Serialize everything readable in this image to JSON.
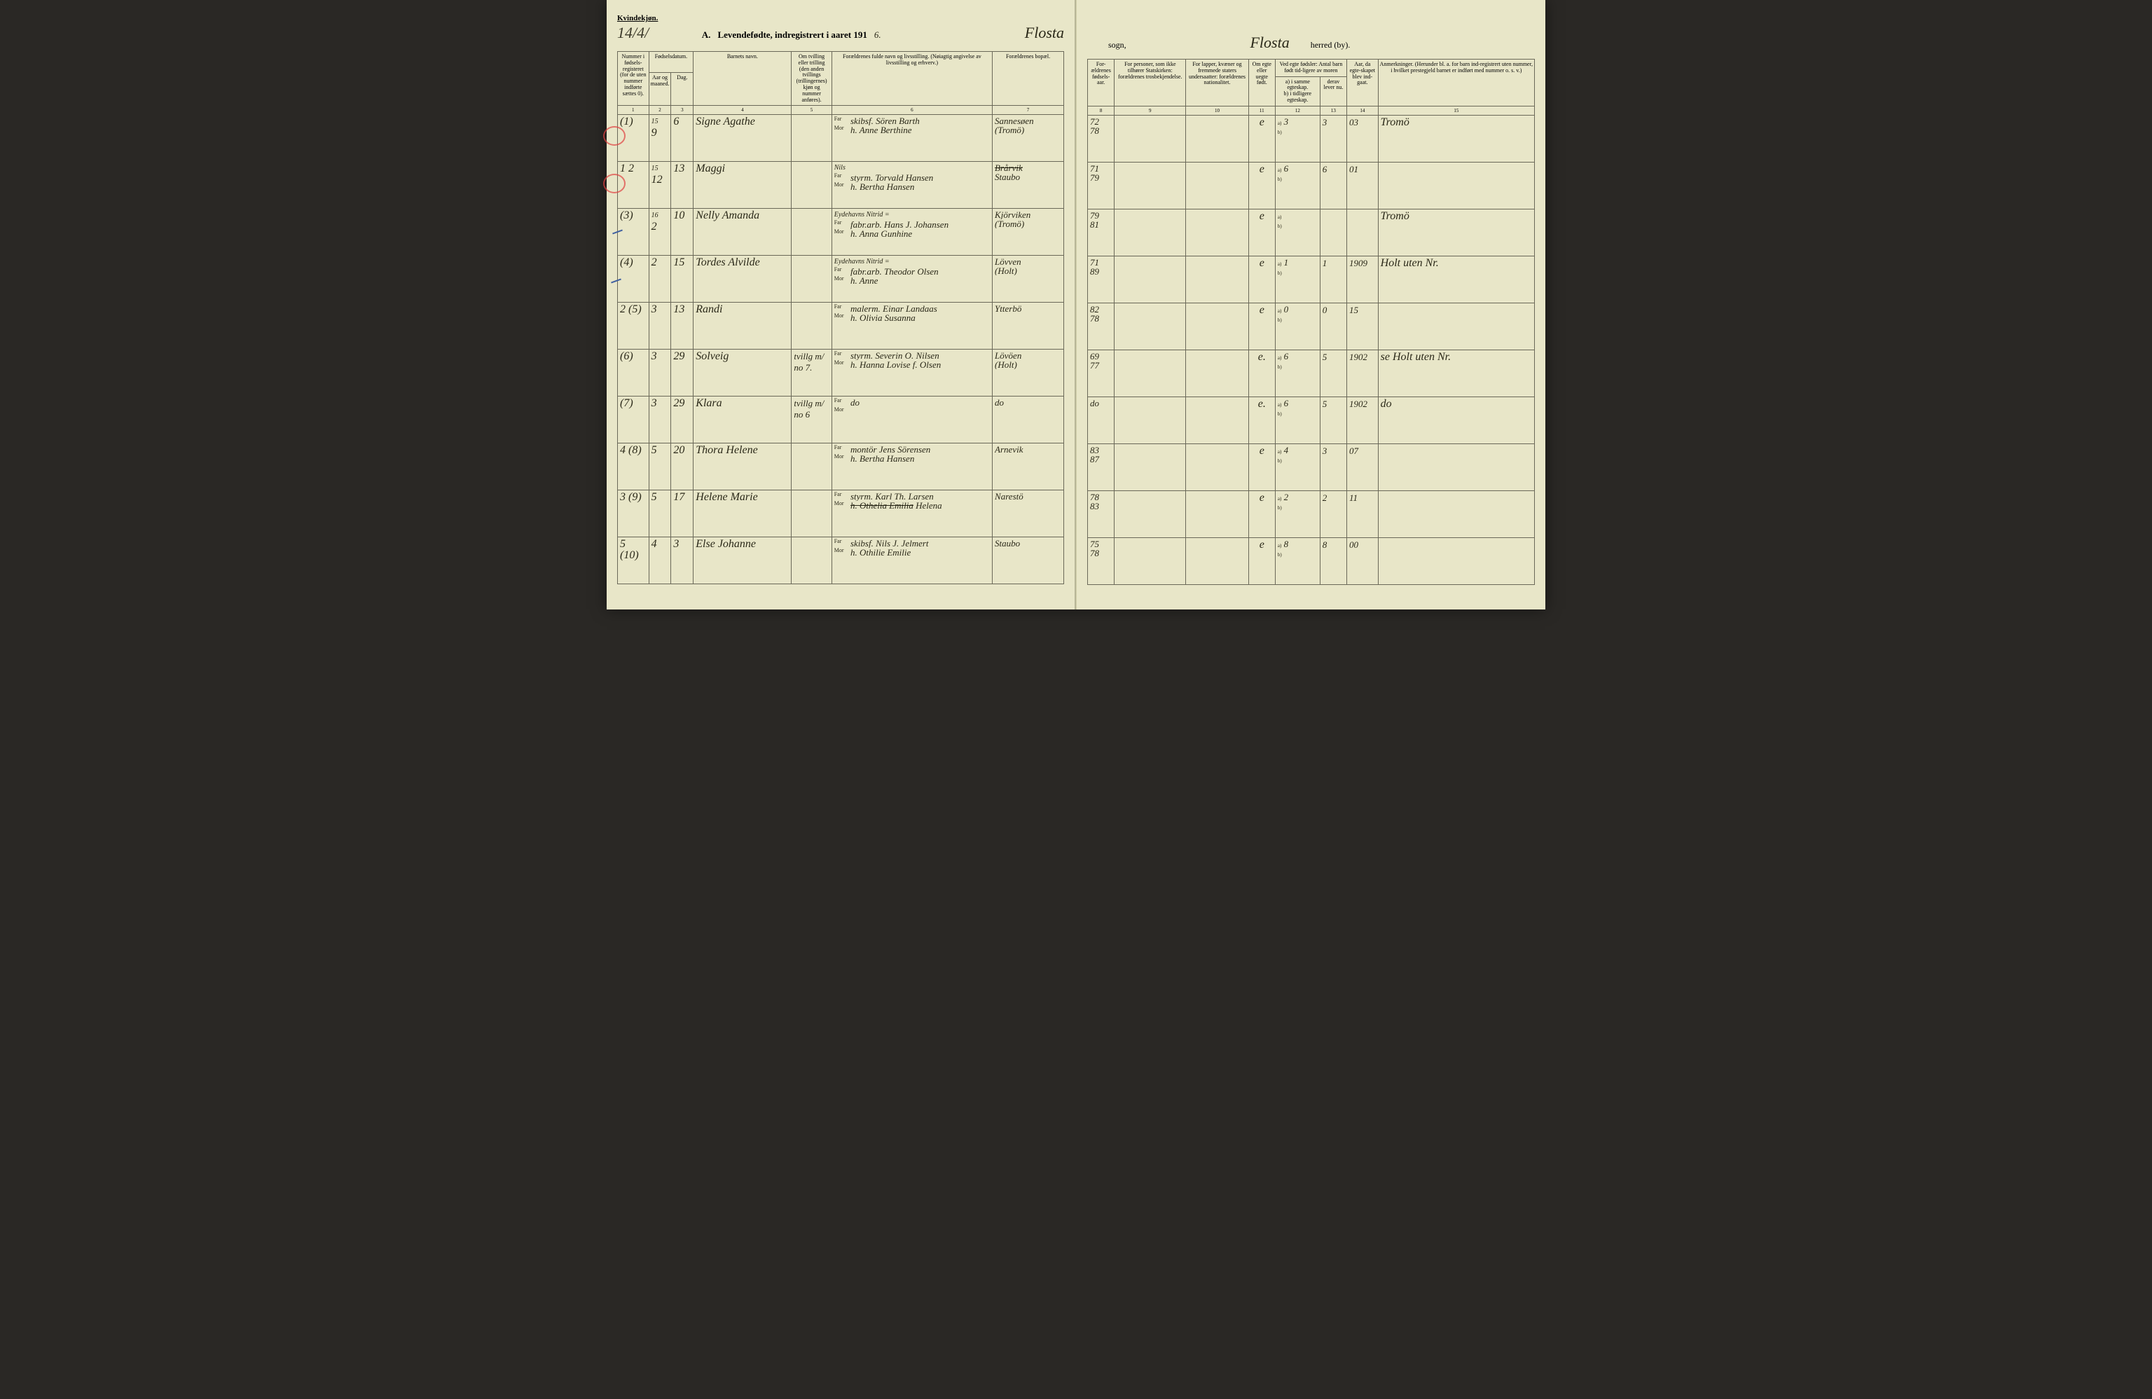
{
  "header": {
    "gender_label": "Kvindekjøn.",
    "page_number": "14/4/",
    "title_prefix": "A.",
    "title_text": "Levendefødte, indregistrert i aaret 191",
    "year_suffix": "6.",
    "sogn_name": "Flosta",
    "sogn_label": "sogn,",
    "herred_name": "Flosta",
    "herred_label": "herred (by)."
  },
  "columns_left": {
    "c1": "Nummer i fødsels-registeret (for de uten nummer indførte sættes 0).",
    "c2": "Fødselsdatum.",
    "c2a": "Aar og maaned.",
    "c2b": "Dag.",
    "c4": "Barnets navn.",
    "c5": "Om tvilling eller trilling (den anden tvillings (trillingernes) kjøn og nummer anføres).",
    "c6": "Forældrenes fulde navn og livsstilling. (Nøiagtig angivelse av livsstilling og erhverv.)",
    "c7": "Forældrenes bopæl."
  },
  "columns_right": {
    "c8": "For-ældrenes fødsels-aar.",
    "c9": "For personer, som ikke tilhører Statskirken: forældrenes trosbekjendelse.",
    "c10": "For lapper, kvæner og fremmede staters undersaatter: forældrenes nationalitet.",
    "c11": "Om egte eller uegte født.",
    "c12_head": "Ved egte fødsler: Antal barn født tid-ligere av moren",
    "c12a": "a) i samme egteskap.",
    "c12b": "b) i tidligere egteskap.",
    "c13": "derav lever nu.",
    "c14": "Aar, da egte-skapet blev ind-gaat.",
    "c15": "Anmerkninger. (Herunder bl. a. for barn ind-registrert uten nummer, i hvilket prestegjeld barnet er indført med nummer o. s. v.)"
  },
  "colnums_left": [
    "1",
    "2",
    "3",
    "4",
    "5",
    "6",
    "7"
  ],
  "colnums_right": [
    "8",
    "9",
    "10",
    "11",
    "12",
    "13",
    "14",
    "15"
  ],
  "far_label": "Far",
  "mor_label": "Mor",
  "rows": [
    {
      "num": "(1)",
      "year_note": "15",
      "month": "9",
      "day": "6",
      "name": "Signe Agathe",
      "twin": "",
      "far": "skibsf. Sören Barth",
      "mor": "h. Anne Berthine",
      "bopel_far": "Sannesøen",
      "bopel_mor": "(Tromö)",
      "faar": "72",
      "maar": "78",
      "c9": "",
      "c10": "",
      "egte": "e",
      "a": "3",
      "b": "",
      "lever": "3",
      "aar_egt": "03",
      "anm": "Tromö"
    },
    {
      "num": "1 2",
      "year_note": "15",
      "month": "12",
      "day": "13",
      "name": "Maggi",
      "twin": "",
      "far": "styrm. Torvald Hansen",
      "far_over": "Nils",
      "mor": "h. Bertha Hansen",
      "bopel_far_strike": "Brårvik",
      "bopel_far": "Staubo",
      "bopel_mor": "",
      "faar": "71",
      "maar": "79",
      "c9": "",
      "c10": "",
      "egte": "e",
      "a": "6",
      "b": "",
      "lever": "6",
      "aar_egt": "01",
      "anm": ""
    },
    {
      "num": "(3)",
      "year_note": "16",
      "month": "2",
      "day": "10",
      "name": "Nelly Amanda",
      "twin": "",
      "far_over": "Eydehavns Nitrid =",
      "far": "fabr.arb. Hans J. Johansen",
      "mor": "h. Anna Gunhine",
      "bopel_far": "Kjörviken",
      "bopel_mor": "(Tromö)",
      "faar": "79",
      "maar": "81",
      "c9": "",
      "c10": "",
      "egte": "e",
      "a": "",
      "b": "",
      "lever": "",
      "aar_egt": "",
      "anm": "Tromö"
    },
    {
      "num": "(4)",
      "year_note": "",
      "month": "2",
      "day": "15",
      "name": "Tordes Alvilde",
      "twin": "",
      "far_over": "Eydehavns Nitrid =",
      "far": "fabr.arb. Theodor Olsen",
      "mor": "h. Anne",
      "bopel_far": "Lövven",
      "bopel_mor": "(Holt)",
      "faar": "71",
      "maar": "89",
      "c9": "",
      "c10": "",
      "egte": "e",
      "a": "1",
      "b": "",
      "lever": "1",
      "aar_egt": "1909",
      "anm": "Holt uten Nr."
    },
    {
      "num": "2 (5)",
      "year_note": "",
      "month": "3",
      "day": "13",
      "name": "Randi",
      "twin": "",
      "far": "malerm. Einar Landaas",
      "mor": "h. Olivia Susanna",
      "bopel_far": "Ytterbö",
      "bopel_mor": "",
      "faar": "82",
      "maar": "78",
      "c9": "",
      "c10": "",
      "egte": "e",
      "a": "0",
      "b": "",
      "lever": "0",
      "aar_egt": "15",
      "anm": ""
    },
    {
      "num": "(6)",
      "year_note": "",
      "month": "3",
      "day": "29",
      "name": "Solveig",
      "twin": "tvillg m/ no 7.",
      "far": "styrm. Severin O. Nilsen",
      "mor": "h. Hanna Lovise f. Olsen",
      "bopel_far": "Lövöen",
      "bopel_mor": "(Holt)",
      "faar": "69",
      "maar": "77",
      "c9": "",
      "c10": "",
      "egte": "e.",
      "a": "6",
      "b": "",
      "lever": "5",
      "aar_egt": "1902",
      "anm": "se Holt uten Nr."
    },
    {
      "num": "(7)",
      "year_note": "",
      "month": "3",
      "day": "29",
      "name": "Klara",
      "twin": "tvillg m/ no 6",
      "far": "do",
      "mor": "",
      "bopel_far": "do",
      "bopel_mor": "",
      "faar": "do",
      "maar": "",
      "c9": "",
      "c10": "",
      "egte": "e.",
      "a": "6",
      "b": "",
      "lever": "5",
      "aar_egt": "1902",
      "anm": "do"
    },
    {
      "num": "4 (8)",
      "year_note": "",
      "month": "5",
      "day": "20",
      "name": "Thora Helene",
      "twin": "",
      "far": "montör Jens Sörensen",
      "mor": "h. Bertha Hansen",
      "bopel_far": "Arnevik",
      "bopel_mor": "",
      "faar": "83",
      "maar": "87",
      "c9": "",
      "c10": "",
      "egte": "e",
      "a": "4",
      "b": "",
      "lever": "3",
      "aar_egt": "07",
      "anm": ""
    },
    {
      "num": "3 (9)",
      "year_note": "",
      "month": "5",
      "day": "17",
      "name": "Helene Marie",
      "twin": "",
      "far": "styrm. Karl Th. Larsen",
      "mor_strike": "h. Othelia Emilia",
      "mor": "Helena",
      "bopel_far": "Narestö",
      "bopel_mor": "",
      "faar": "78",
      "maar": "83",
      "c9": "",
      "c10": "",
      "egte": "e",
      "a": "2",
      "b": "",
      "lever": "2",
      "aar_egt": "11",
      "anm": ""
    },
    {
      "num": "5 (10)",
      "year_note": "",
      "month": "4",
      "day": "3",
      "name": "Else Johanne",
      "twin": "",
      "far": "skibsf. Nils J. Jelmert",
      "mor": "h. Othilie Emilie",
      "bopel_far": "Staubo",
      "bopel_mor": "",
      "faar": "75",
      "maar": "78",
      "c9": "",
      "c10": "",
      "egte": "e",
      "a": "8",
      "b": "",
      "lever": "8",
      "aar_egt": "00",
      "anm": ""
    }
  ],
  "styling": {
    "paper_bg": "#e8e6c8",
    "ink": "#2a2818",
    "border": "#6a6858",
    "red": "#e04040",
    "blue": "#4060a0"
  }
}
